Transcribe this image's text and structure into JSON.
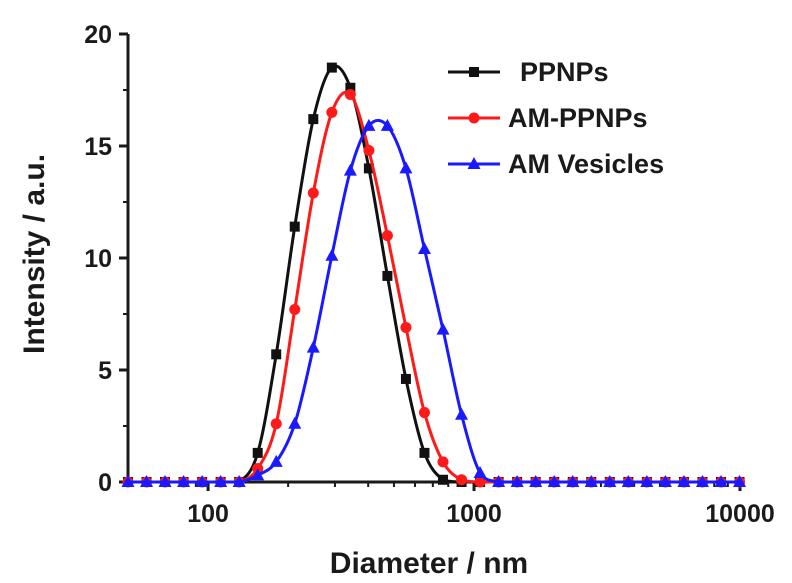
{
  "chart_data": {
    "type": "line",
    "xlabel": "Diameter / nm",
    "ylabel": "Intensity / a.u.",
    "xscale": "log",
    "xlim": [
      50,
      10000
    ],
    "ylim": [
      0,
      20
    ],
    "x_ticks": [
      100,
      1000,
      10000
    ],
    "x_tick_labels": [
      "100",
      "1000",
      "10000"
    ],
    "y_ticks": [
      0,
      5,
      10,
      15,
      20
    ],
    "y_tick_labels": [
      "0",
      "5",
      "10",
      "15",
      "20"
    ],
    "grid": false,
    "legend_position": "top-right",
    "x": [
      50.0,
      58.7,
      68.9,
      80.9,
      95.0,
      111.5,
      130.9,
      153.7,
      180.4,
      211.8,
      248.7,
      292.0,
      342.8,
      402.4,
      472.4,
      554.6,
      651.1,
      764.5,
      897.6,
      1053.7,
      1237.1,
      1452.4,
      1705.2,
      2001.9,
      2350.3,
      2759.3,
      3239.5,
      3803.3,
      4465.2,
      5242.2,
      6154.5,
      7225.6,
      8483.0,
      9959.1
    ],
    "series": [
      {
        "name": "PPNPs",
        "color": "#111111",
        "marker": "square",
        "values": [
          0,
          0,
          0,
          0,
          0,
          0,
          0,
          1.3,
          5.7,
          11.4,
          16.2,
          18.5,
          17.6,
          14.0,
          9.2,
          4.6,
          1.3,
          0.1,
          0,
          0,
          0,
          0,
          0,
          0,
          0,
          0,
          0,
          0,
          0,
          0,
          0,
          0,
          0,
          0
        ]
      },
      {
        "name": "AM-PPNPs",
        "color": "#ff1a1a",
        "marker": "circle",
        "values": [
          0,
          0,
          0,
          0,
          0,
          0,
          0,
          0.6,
          2.6,
          7.7,
          12.9,
          16.5,
          17.3,
          14.8,
          11.0,
          6.9,
          3.1,
          0.9,
          0.1,
          0,
          0,
          0,
          0,
          0,
          0,
          0,
          0,
          0,
          0,
          0,
          0,
          0,
          0,
          0
        ]
      },
      {
        "name": "AM Vesicles",
        "color": "#1a1aff",
        "marker": "triangle",
        "values": [
          0,
          0,
          0,
          0,
          0,
          0,
          0,
          0.3,
          0.9,
          2.6,
          6.0,
          10.1,
          13.9,
          15.9,
          15.9,
          14.0,
          10.4,
          6.8,
          3.0,
          0.4,
          0,
          0,
          0,
          0,
          0,
          0,
          0,
          0,
          0,
          0,
          0,
          0,
          0,
          0
        ]
      }
    ]
  }
}
